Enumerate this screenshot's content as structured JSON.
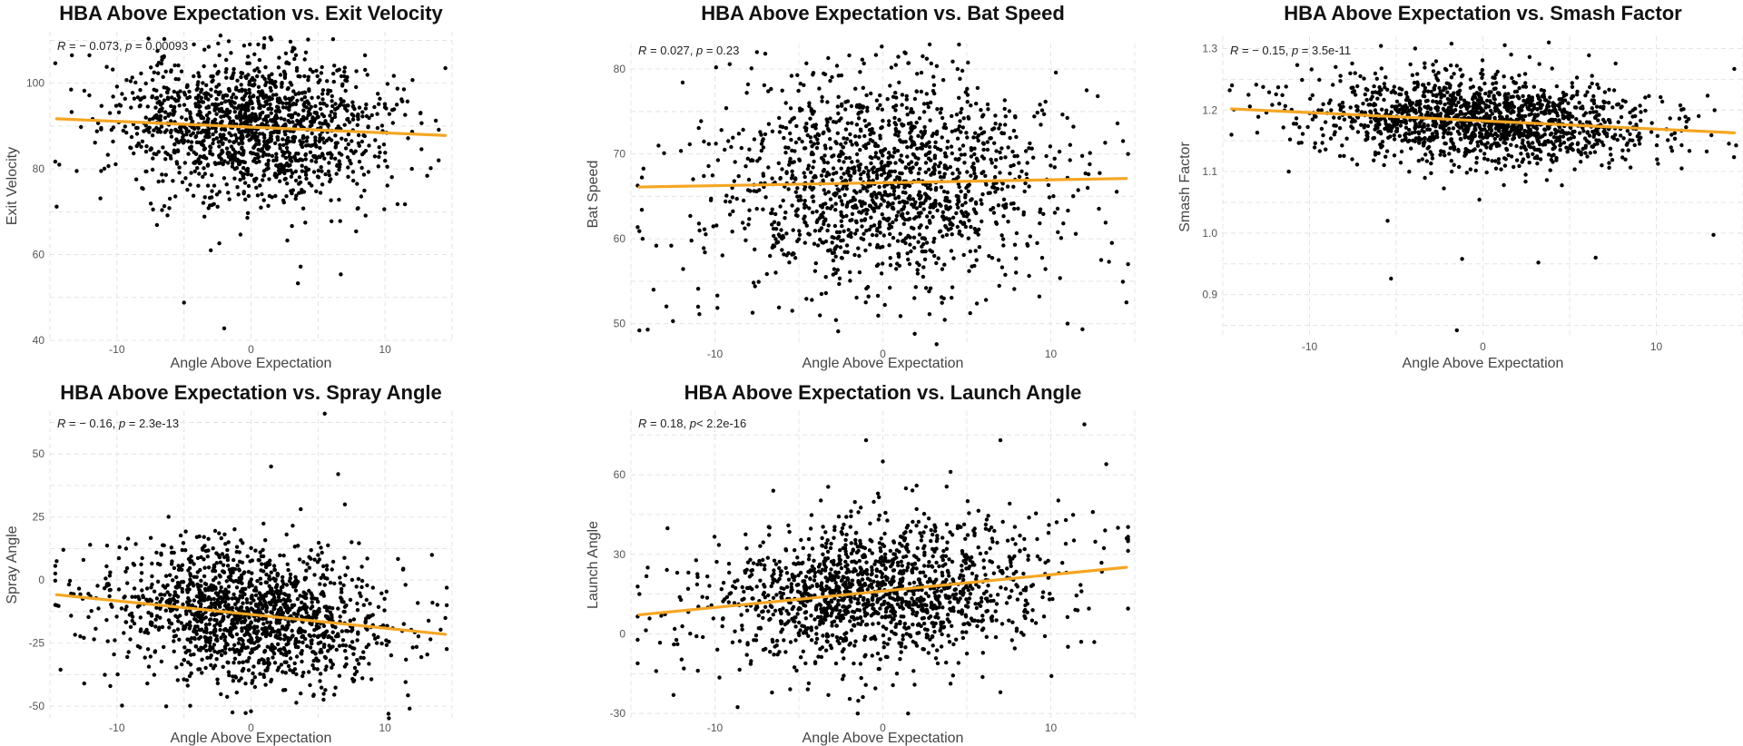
{
  "chart_data": [
    {
      "type": "scatter",
      "title": "HBA Above Expectation vs. Exit Velocity",
      "xlabel": "Angle Above Expectation",
      "ylabel": "Exit Velocity",
      "xlim": [
        -15,
        15
      ],
      "ylim": [
        40,
        112
      ],
      "x_ticks": [
        -10,
        0,
        10
      ],
      "y_ticks": [
        40,
        60,
        80,
        100
      ],
      "x_tick_labels": [
        "-10",
        "0",
        "10"
      ],
      "y_tick_labels": [
        "40",
        "60",
        "80",
        "100"
      ],
      "stat": {
        "r_label": "R",
        "r_text": " = − 0.073, ",
        "p_label": "p",
        "p_text": " = 0.00093"
      },
      "regression": {
        "x": [
          -14.5,
          14.5
        ],
        "y": [
          91.7,
          87.8
        ],
        "color": "#f5a623"
      },
      "cloud": {
        "n": 1500,
        "seed": 11,
        "x_center": 0,
        "x_sd": 5,
        "y_center": 90.2,
        "y_sd": 8.5,
        "slope": -0.13
      },
      "points": [
        [
          -14.5,
          71.2
        ],
        [
          -14.3,
          81.0
        ],
        [
          -5,
          48.8
        ],
        [
          -2,
          42.8
        ],
        [
          3.5,
          53.3
        ],
        [
          3.7,
          57.2
        ],
        [
          6.7,
          55.4
        ],
        [
          1,
          110.5
        ],
        [
          -13,
          79.5
        ],
        [
          12,
          80
        ],
        [
          14,
          82
        ],
        [
          -3,
          61
        ]
      ],
      "grid": true
    },
    {
      "type": "scatter",
      "title": "HBA Above Expectation vs. Bat Speed",
      "xlabel": "Angle Above Expectation",
      "ylabel": "Bat Speed",
      "xlim": [
        -15,
        15
      ],
      "ylim": [
        47.5,
        83
      ],
      "x_ticks": [
        -10,
        0,
        10
      ],
      "y_ticks": [
        50,
        60,
        70,
        80
      ],
      "x_tick_labels": [
        "-10",
        "0",
        "10"
      ],
      "y_tick_labels": [
        "50",
        "60",
        "70",
        "80"
      ],
      "stat": {
        "r_label": "R",
        "r_text": " = 0.027, ",
        "p_label": "p",
        "p_text": " = 0.23"
      },
      "regression": {
        "x": [
          -14.5,
          14.5
        ],
        "y": [
          66.1,
          67.1
        ],
        "color": "#f5a623"
      },
      "cloud": {
        "n": 1500,
        "seed": 23,
        "x_center": 0,
        "x_sd": 5,
        "y_center": 66.6,
        "y_sd": 6.3,
        "slope": 0.035
      },
      "points": [
        [
          -14.5,
          49.2
        ],
        [
          -14,
          49.3
        ],
        [
          -12.5,
          50.3
        ],
        [
          -14.5,
          60.9
        ],
        [
          -14.3,
          60
        ],
        [
          -7.5,
          82
        ],
        [
          -7,
          81.8
        ],
        [
          -2,
          81.6
        ],
        [
          14.5,
          52.5
        ],
        [
          11,
          50
        ],
        [
          13,
          57.5
        ],
        [
          -11,
          52
        ]
      ],
      "grid": true
    },
    {
      "type": "scatter",
      "title": "HBA Above Expectation vs. Smash Factor",
      "xlabel": "Angle Above Expectation",
      "ylabel": "Smash Factor",
      "xlim": [
        -15,
        15
      ],
      "ylim": [
        0.83,
        1.32
      ],
      "x_ticks": [
        -10,
        0,
        10
      ],
      "y_ticks": [
        0.9,
        1.0,
        1.1,
        1.2,
        1.3
      ],
      "x_tick_labels": [
        "-10",
        "0",
        "10"
      ],
      "y_tick_labels": [
        "0.9",
        "1.0",
        "1.1",
        "1.2",
        "1.3"
      ],
      "stat": {
        "r_label": "R",
        "r_text": " = − 0.15, ",
        "p_label": "p",
        "p_text": " = 3.5e-11"
      },
      "regression": {
        "x": [
          -14.5,
          14.5
        ],
        "y": [
          1.202,
          1.163
        ],
        "color": "#f5a623"
      },
      "cloud": {
        "n": 1500,
        "seed": 37,
        "x_center": 0,
        "x_sd": 5,
        "y_center": 1.185,
        "y_sd": 0.036,
        "slope": -0.0013
      },
      "points": [
        [
          -1.5,
          0.842
        ],
        [
          -5.3,
          0.926
        ],
        [
          -1.2,
          0.958
        ],
        [
          3.2,
          0.952
        ],
        [
          -5.5,
          1.02
        ],
        [
          14.5,
          1.267
        ],
        [
          13.3,
          0.997
        ],
        [
          -14.5,
          1.16
        ],
        [
          -11.2,
          1.1
        ],
        [
          -1.8,
          1.1
        ],
        [
          6.5,
          0.96
        ],
        [
          3.8,
          1.31
        ]
      ],
      "grid": true
    },
    {
      "type": "scatter",
      "title": "HBA Above Expectation vs. Spray Angle",
      "xlabel": "Angle Above Expectation",
      "ylabel": "Spray Angle",
      "xlim": [
        -15,
        15
      ],
      "ylim": [
        -55,
        67
      ],
      "x_ticks": [
        -10,
        0,
        10
      ],
      "y_ticks": [
        -50,
        -25,
        0,
        25,
        50
      ],
      "x_tick_labels": [
        "-10",
        "0",
        "10"
      ],
      "y_tick_labels": [
        "-50",
        "-25",
        "0",
        "25",
        "50"
      ],
      "stat": {
        "r_label": "R",
        "r_text": " = − 0.16, ",
        "p_label": "p",
        "p_text": " = 2.3e-13"
      },
      "regression": {
        "x": [
          -14.5,
          14.5
        ],
        "y": [
          -5.8,
          -21.5
        ],
        "color": "#f5a623"
      },
      "cloud": {
        "n": 1500,
        "seed": 53,
        "x_center": 0,
        "x_sd": 5,
        "y_center": -13.6,
        "y_sd": 13.5,
        "slope": -0.55
      },
      "points": [
        [
          -14.5,
          7.5
        ],
        [
          -14.5,
          -10
        ],
        [
          -14,
          12
        ],
        [
          -12.5,
          8
        ],
        [
          -12,
          14
        ],
        [
          5.5,
          66
        ],
        [
          1.5,
          45
        ],
        [
          6.5,
          42
        ],
        [
          7,
          30
        ],
        [
          -10.5,
          -42
        ],
        [
          0,
          -52
        ],
        [
          13.5,
          10
        ],
        [
          14.5,
          -15
        ]
      ],
      "grid": true
    },
    {
      "type": "scatter",
      "title": "HBA Above Expectation vs. Launch Angle",
      "xlabel": "Angle Above Expectation",
      "ylabel": "Launch Angle",
      "xlim": [
        -15,
        15
      ],
      "ylim": [
        -32,
        84
      ],
      "x_ticks": [
        -10,
        0,
        10
      ],
      "y_ticks": [
        -30,
        0,
        30,
        60
      ],
      "x_tick_labels": [
        "-10",
        "0",
        "10"
      ],
      "y_tick_labels": [
        "-30",
        "0",
        "30",
        "60"
      ],
      "stat": {
        "r_label": "R",
        "r_text": " = 0.18, ",
        "p_label": "p",
        "p_text": "< 2.2e-16"
      },
      "regression": {
        "x": [
          -14.5,
          14.5
        ],
        "y": [
          7.2,
          25.1
        ],
        "color": "#f5a623"
      },
      "cloud": {
        "n": 1500,
        "seed": 71,
        "x_center": 0,
        "x_sd": 5,
        "y_center": 16,
        "y_sd": 13,
        "slope": 0.62
      },
      "points": [
        [
          -14.5,
          15
        ],
        [
          -13.5,
          -14
        ],
        [
          -1,
          73
        ],
        [
          7,
          73
        ],
        [
          12,
          79
        ],
        [
          13.3,
          64
        ],
        [
          0,
          65
        ],
        [
          -1.5,
          -30
        ],
        [
          1.5,
          -30
        ],
        [
          7,
          -22
        ],
        [
          -14,
          25
        ],
        [
          14,
          40
        ]
      ],
      "grid": true
    }
  ]
}
